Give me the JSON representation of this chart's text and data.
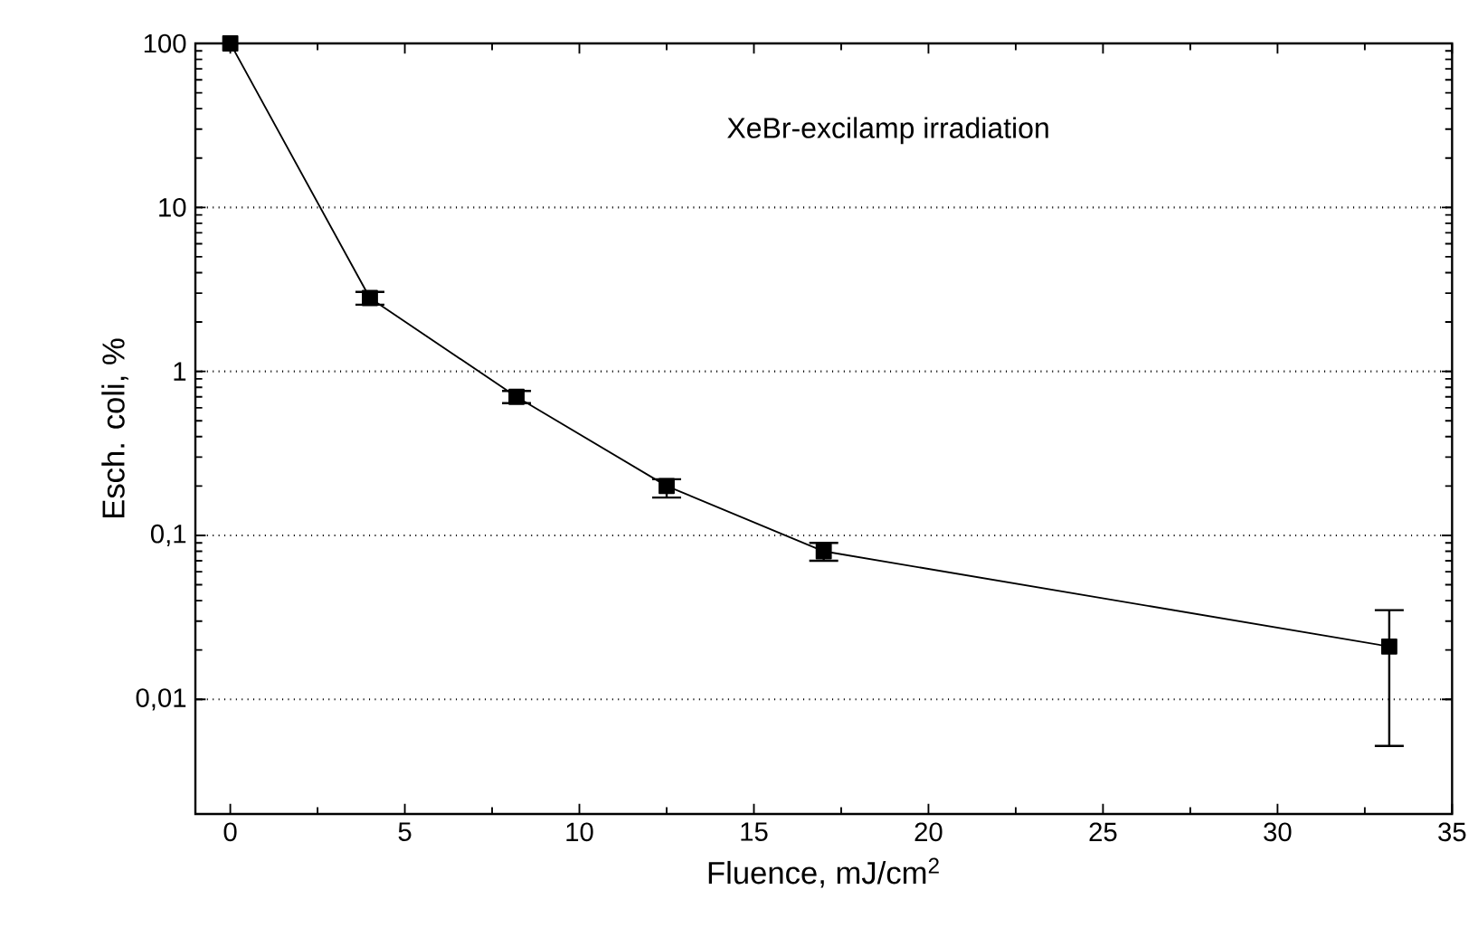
{
  "chart_data": {
    "type": "line",
    "xlabel": "Fluence, mJ/cm$^{2}$",
    "ylabel": "Esch. coli, %",
    "annotations": [
      "XeBr-excilamp  irradiation"
    ],
    "x": [
      0,
      4,
      8.2,
      12.5,
      17,
      33.2
    ],
    "series": [
      {
        "color": "#000000",
        "values": [
          100,
          2.8,
          0.7,
          0.2,
          0.08,
          0.021
        ],
        "errors": [
          null,
          [
            2.55,
            3.05
          ],
          [
            0.64,
            0.76
          ],
          [
            0.17,
            0.22
          ],
          [
            0.07,
            0.09
          ],
          [
            0.0052,
            0.035
          ]
        ]
      }
    ],
    "xlim": [
      -1,
      35
    ],
    "ylim": [
      0.002,
      100
    ],
    "xticks": [
      0,
      5,
      10,
      15,
      20,
      25,
      30,
      35
    ],
    "yticks": [
      {
        "value": 0.01,
        "label": "0,01"
      },
      {
        "value": 0.1,
        "label": "0,1"
      },
      1,
      10,
      100
    ],
    "log": "y",
    "grid": "y",
    "marker": "square",
    "line_style": "solid"
  }
}
